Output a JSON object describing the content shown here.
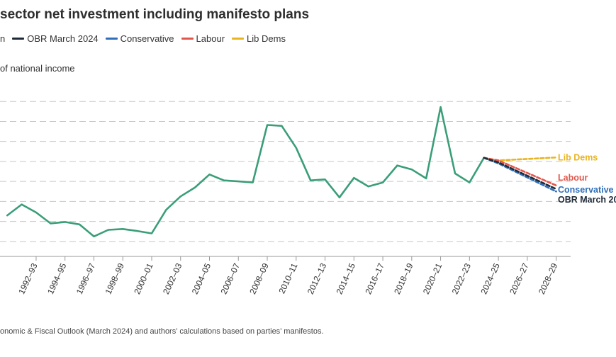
{
  "chart_data": {
    "type": "line",
    "title": "sector net investment including manifesto plans",
    "ylabel": "of national income",
    "source": "onomic & Fiscal Outlook (March 2024) and authors’ calculations based on parties’ manifestos.",
    "legend": [
      {
        "name": "n",
        "color": "#3a9e78"
      },
      {
        "name": "OBR March 2024",
        "color": "#1f2a38"
      },
      {
        "name": "Conservative",
        "color": "#2f6fba"
      },
      {
        "name": "Labour",
        "color": "#e2574c"
      },
      {
        "name": "Lib Dems",
        "color": "#e8b420"
      }
    ],
    "x_ticks": [
      "1992–93",
      "1994–95",
      "1996–97",
      "1998–99",
      "2000–01",
      "2002–03",
      "2004–05",
      "2006–07",
      "2008–09",
      "2010–11",
      "2012–13",
      "2014–15",
      "2016–17",
      "2018–19",
      "2020–21",
      "2022–23",
      "2024–25",
      "2026–27",
      "2028–29"
    ],
    "series": [
      {
        "name": "Outturn",
        "color": "#3a9e78",
        "x": [
          1990.5,
          1991.5,
          1992.5,
          1993.5,
          1994.5,
          1995.5,
          1996.5,
          1997.5,
          1998.5,
          1999.5,
          2000.5,
          2001.5,
          2002.5,
          2003.5,
          2004.5,
          2005.5,
          2006.5,
          2007.5,
          2008.5,
          2009.5,
          2010.5,
          2011.5,
          2012.5,
          2013.5,
          2014.5,
          2015.5,
          2016.5,
          2017.5,
          2018.5,
          2019.5,
          2020.5,
          2021.5,
          2022.5,
          2023.5
        ],
        "y": [
          1.3,
          1.85,
          1.45,
          0.9,
          0.97,
          0.85,
          0.25,
          0.58,
          0.62,
          0.52,
          0.4,
          1.58,
          2.25,
          2.7,
          3.35,
          3.05,
          3.0,
          2.95,
          5.82,
          5.78,
          4.68,
          3.05,
          3.1,
          2.2,
          3.18,
          2.75,
          2.95,
          3.8,
          3.6,
          3.15,
          6.72,
          3.4,
          2.95,
          4.18
        ]
      },
      {
        "name": "Lib Dems",
        "color": "#e8b420",
        "x": [
          2023.5,
          2024.5,
          2028.5
        ],
        "y": [
          4.18,
          4.05,
          4.2
        ]
      },
      {
        "name": "Labour",
        "color": "#e2574c",
        "x": [
          2023.5,
          2024.5,
          2028.5
        ],
        "y": [
          4.18,
          4.05,
          2.8
        ]
      },
      {
        "name": "Conservative",
        "color": "#2f6fba",
        "x": [
          2023.5,
          2024.5,
          2028.5
        ],
        "y": [
          4.18,
          3.9,
          2.5
        ]
      },
      {
        "name": "OBR March 2024",
        "color": "#1f2a38",
        "x": [
          2023.5,
          2024.5,
          2028.5
        ],
        "y": [
          4.18,
          3.95,
          2.62
        ]
      }
    ],
    "end_labels": [
      {
        "text": "Lib Dems",
        "color": "#e8b420",
        "y": 4.2
      },
      {
        "text": "Labour",
        "color": "#e2574c",
        "y": 3.18
      },
      {
        "text": "Conservative",
        "color": "#2f6fba",
        "y": 2.58
      },
      {
        "text": "OBR March 20",
        "color": "#1f2a38",
        "y": 2.08
      }
    ],
    "ylim": [
      -0.75,
      8.0
    ],
    "xlim": [
      1990.0,
      2029.5
    ],
    "grid": true,
    "grid_values": [
      0.0,
      1.0,
      2.0,
      3.0,
      4.0,
      5.0,
      6.0,
      7.0
    ]
  }
}
